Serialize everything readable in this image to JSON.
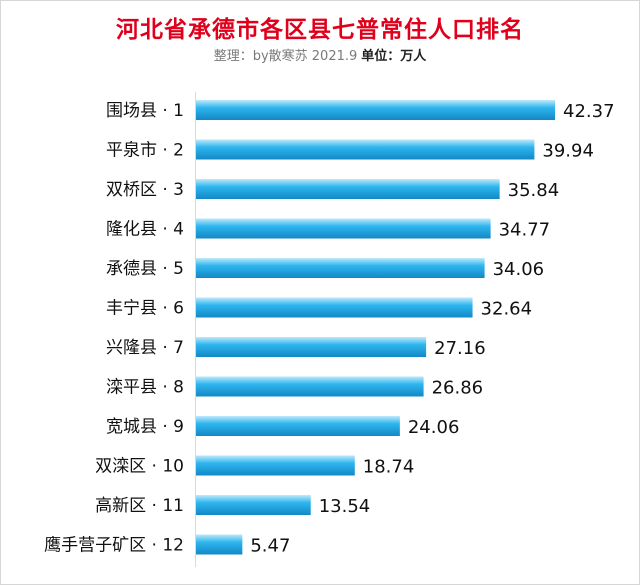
{
  "header": {
    "title": "河北省承德市各区县七普常住人口排名",
    "credit": "整理：by散寒苏  2021.9",
    "unit": "单位：万人"
  },
  "colors": {
    "title": "#e0001b",
    "bar_light": "#bfe9fb",
    "bar_mid": "#2fb6ee",
    "bar_dark": "#1288c6"
  },
  "chart_data": {
    "type": "bar",
    "orientation": "horizontal",
    "title": "河北省承德市各区县七普常住人口排名",
    "subtitle": "整理：by散寒苏  2021.9 单位：万人",
    "categories": [
      "围场县 · 1",
      "平泉市 · 2",
      "双桥区 · 3",
      "隆化县 · 4",
      "承德县 · 5",
      "丰宁县 · 6",
      "兴隆县 · 7",
      "滦平县 · 8",
      "宽城县 · 9",
      "双滦区 · 10",
      "高新区 · 11",
      "鹰手营子矿区 · 12"
    ],
    "values": [
      42.37,
      39.94,
      35.84,
      34.77,
      34.06,
      32.64,
      27.16,
      26.86,
      24.06,
      18.74,
      13.54,
      5.47
    ],
    "value_labels": [
      "42.37",
      "39.94",
      "35.84",
      "34.77",
      "34.06",
      "32.64",
      "27.16",
      "26.86",
      "24.06",
      "18.74",
      "13.54",
      "5.47"
    ],
    "xlabel": "",
    "ylabel": "",
    "xlim": [
      0,
      42.37
    ],
    "grid": false,
    "legend": "none"
  }
}
